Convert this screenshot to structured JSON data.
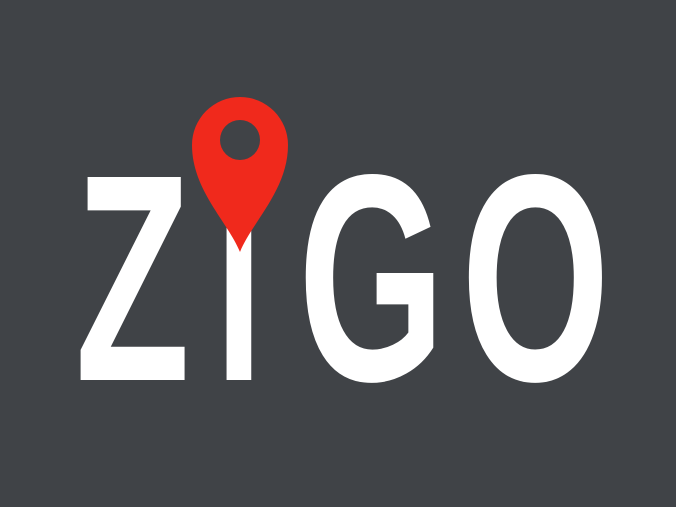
{
  "logo": {
    "letters": [
      "Z",
      "i",
      "G",
      "O"
    ]
  }
}
